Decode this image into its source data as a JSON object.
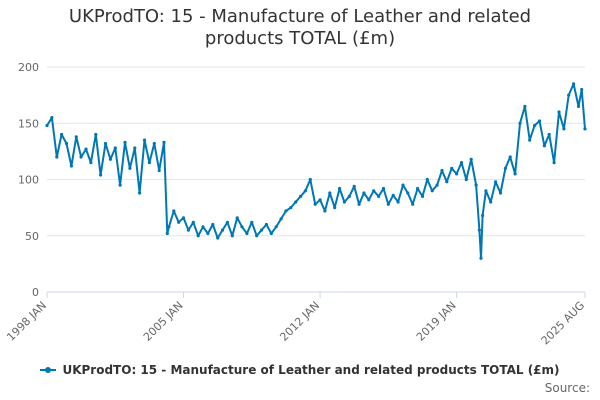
{
  "chart_data": {
    "type": "line",
    "title": "UKProdTO: 15 - Manufacture of Leather and related products TOTAL (£m)",
    "xlabel": "",
    "ylabel": "",
    "ylim": [
      0,
      200
    ],
    "y_ticks": [
      "0",
      "50",
      "100",
      "150",
      "200"
    ],
    "x_ticks": [
      "1998 JAN",
      "2005 JAN",
      "2012 JAN",
      "2019 JAN",
      "2025 AUG"
    ],
    "x_range": [
      "1998-01",
      "2025-08"
    ],
    "grid": "horizontal",
    "legend_position": "bottom",
    "colors": {
      "series": "#0077b5",
      "grid": "#e6e6e6",
      "axis": "#ccd6eb"
    },
    "series": [
      {
        "name": "UKProdTO: 15 - Manufacture of Leather and related products TOTAL (£m)",
        "x": [
          "1998-01",
          "1998-04",
          "1998-07",
          "1998-10",
          "1999-01",
          "1999-04",
          "1999-07",
          "1999-10",
          "2000-01",
          "2000-04",
          "2000-07",
          "2000-10",
          "2001-01",
          "2001-04",
          "2001-07",
          "2001-10",
          "2002-01",
          "2002-04",
          "2002-07",
          "2002-10",
          "2003-01",
          "2003-04",
          "2003-07",
          "2003-10",
          "2004-01",
          "2004-03",
          "2004-04",
          "2004-07",
          "2004-10",
          "2005-01",
          "2005-04",
          "2005-07",
          "2005-10",
          "2006-01",
          "2006-04",
          "2006-07",
          "2006-10",
          "2007-01",
          "2007-04",
          "2007-07",
          "2007-10",
          "2008-01",
          "2008-04",
          "2008-07",
          "2008-10",
          "2009-01",
          "2009-04",
          "2009-07",
          "2009-10",
          "2010-01",
          "2010-04",
          "2010-07",
          "2010-10",
          "2011-01",
          "2011-04",
          "2011-07",
          "2011-10",
          "2012-01",
          "2012-04",
          "2012-07",
          "2012-10",
          "2013-01",
          "2013-04",
          "2013-07",
          "2013-10",
          "2014-01",
          "2014-04",
          "2014-07",
          "2014-10",
          "2015-01",
          "2015-04",
          "2015-07",
          "2015-10",
          "2016-01",
          "2016-04",
          "2016-07",
          "2016-10",
          "2017-01",
          "2017-04",
          "2017-07",
          "2017-10",
          "2018-01",
          "2018-04",
          "2018-07",
          "2018-10",
          "2019-01",
          "2019-04",
          "2019-07",
          "2019-10",
          "2020-01",
          "2020-03",
          "2020-04",
          "2020-05",
          "2020-07",
          "2020-10",
          "2021-01",
          "2021-04",
          "2021-07",
          "2021-10",
          "2022-01",
          "2022-04",
          "2022-07",
          "2022-10",
          "2023-01",
          "2023-04",
          "2023-07",
          "2023-10",
          "2024-01",
          "2024-04",
          "2024-07",
          "2024-10",
          "2025-01",
          "2025-04",
          "2025-06",
          "2025-08"
        ],
        "values": [
          148,
          155,
          120,
          140,
          132,
          112,
          138,
          120,
          127,
          115,
          140,
          104,
          132,
          118,
          128,
          95,
          133,
          110,
          128,
          88,
          135,
          115,
          132,
          108,
          133,
          52,
          58,
          72,
          62,
          66,
          55,
          62,
          50,
          58,
          52,
          60,
          48,
          55,
          62,
          50,
          66,
          58,
          52,
          62,
          50,
          55,
          60,
          52,
          58,
          65,
          72,
          75,
          80,
          85,
          90,
          100,
          78,
          82,
          72,
          88,
          75,
          92,
          80,
          85,
          94,
          78,
          88,
          82,
          90,
          85,
          92,
          78,
          86,
          80,
          95,
          88,
          78,
          92,
          85,
          100,
          90,
          95,
          108,
          98,
          110,
          105,
          115,
          100,
          118,
          95,
          55,
          30,
          68,
          90,
          80,
          98,
          88,
          110,
          120,
          105,
          150,
          165,
          135,
          148,
          152,
          130,
          140,
          115,
          160,
          145,
          175,
          185,
          165,
          180,
          145
        ]
      }
    ]
  },
  "legend": {
    "label": "UKProdTO: 15 - Manufacture of Leather and related products TOTAL (£m)"
  },
  "source": {
    "label": "Source:"
  }
}
